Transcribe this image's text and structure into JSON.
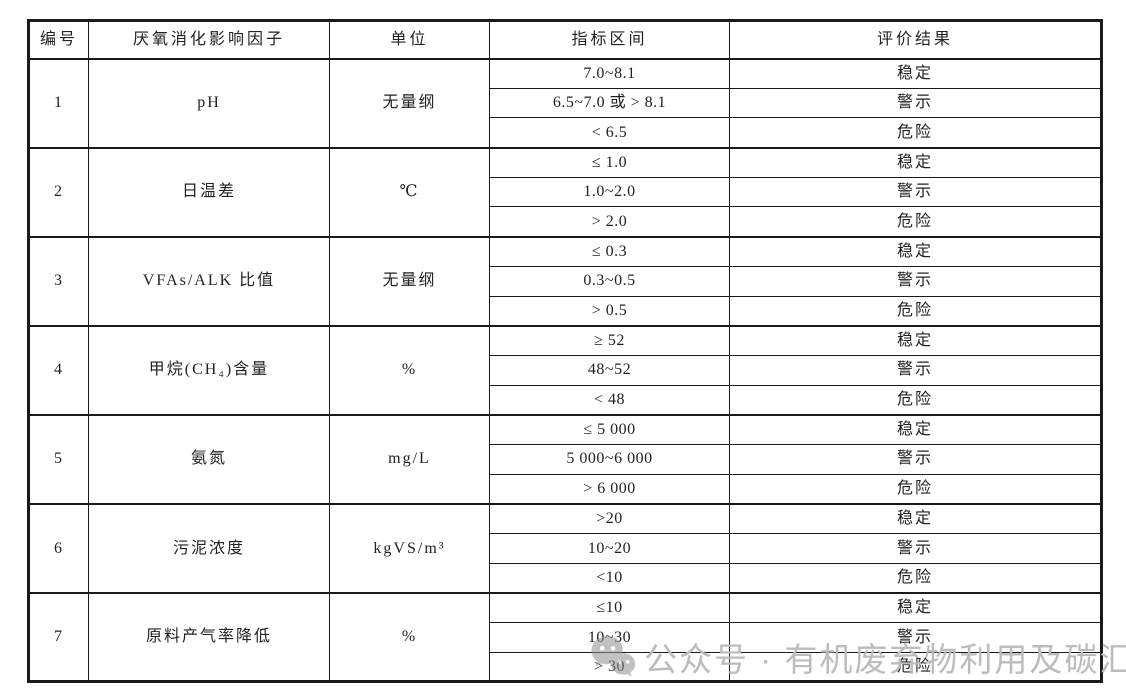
{
  "table": {
    "columns": [
      {
        "label": "编号"
      },
      {
        "label": "厌氧消化影响因子"
      },
      {
        "label": "单位"
      },
      {
        "label": "指标区间"
      },
      {
        "label": "评价结果"
      }
    ],
    "groups": [
      {
        "no": "1",
        "factor": "pH",
        "unit": "无量纲",
        "rows": [
          {
            "range": "7.0~8.1",
            "result": "稳定"
          },
          {
            "range": "6.5~7.0 或 > 8.1",
            "result": "警示"
          },
          {
            "range": "< 6.5",
            "result": "危险"
          }
        ]
      },
      {
        "no": "2",
        "factor": "日温差",
        "unit": "℃",
        "rows": [
          {
            "range": "≤ 1.0",
            "result": "稳定"
          },
          {
            "range": "1.0~2.0",
            "result": "警示"
          },
          {
            "range": "> 2.0",
            "result": "危险"
          }
        ]
      },
      {
        "no": "3",
        "factor": "VFAs/ALK 比值",
        "unit": "无量纲",
        "rows": [
          {
            "range": "≤ 0.3",
            "result": "稳定"
          },
          {
            "range": "0.3~0.5",
            "result": "警示"
          },
          {
            "range": "> 0.5",
            "result": "危险"
          }
        ]
      },
      {
        "no": "4",
        "factor": "甲烷(CH₄)含量",
        "unit": "%",
        "rows": [
          {
            "range": "≥ 52",
            "result": "稳定"
          },
          {
            "range": "48~52",
            "result": "警示"
          },
          {
            "range": "< 48",
            "result": "危险"
          }
        ]
      },
      {
        "no": "5",
        "factor": "氨氮",
        "unit": "mg/L",
        "rows": [
          {
            "range": "≤ 5 000",
            "result": "稳定"
          },
          {
            "range": "5 000~6 000",
            "result": "警示"
          },
          {
            "range": "> 6 000",
            "result": "危险"
          }
        ]
      },
      {
        "no": "6",
        "factor": "污泥浓度",
        "unit": "kgVS/m³",
        "rows": [
          {
            "range": ">20",
            "result": "稳定"
          },
          {
            "range": "10~20",
            "result": "警示"
          },
          {
            "range": "<10",
            "result": "危险"
          }
        ]
      },
      {
        "no": "7",
        "factor": "原料产气率降低",
        "unit": "%",
        "rows": [
          {
            "range": "≤10",
            "result": "稳定"
          },
          {
            "range": "10~30",
            "result": "警示"
          },
          {
            "range": "> 30",
            "result": "危险"
          }
        ]
      }
    ]
  },
  "watermark": {
    "text": "公众号 · 有机废弃物利用及碳汇",
    "icon": "wechat-icon",
    "text_color": "#bcbcbc",
    "icon_color": "#8f8f8f"
  },
  "colors": {
    "border": "#1a1a1a",
    "text": "#222222",
    "background": "#ffffff"
  }
}
